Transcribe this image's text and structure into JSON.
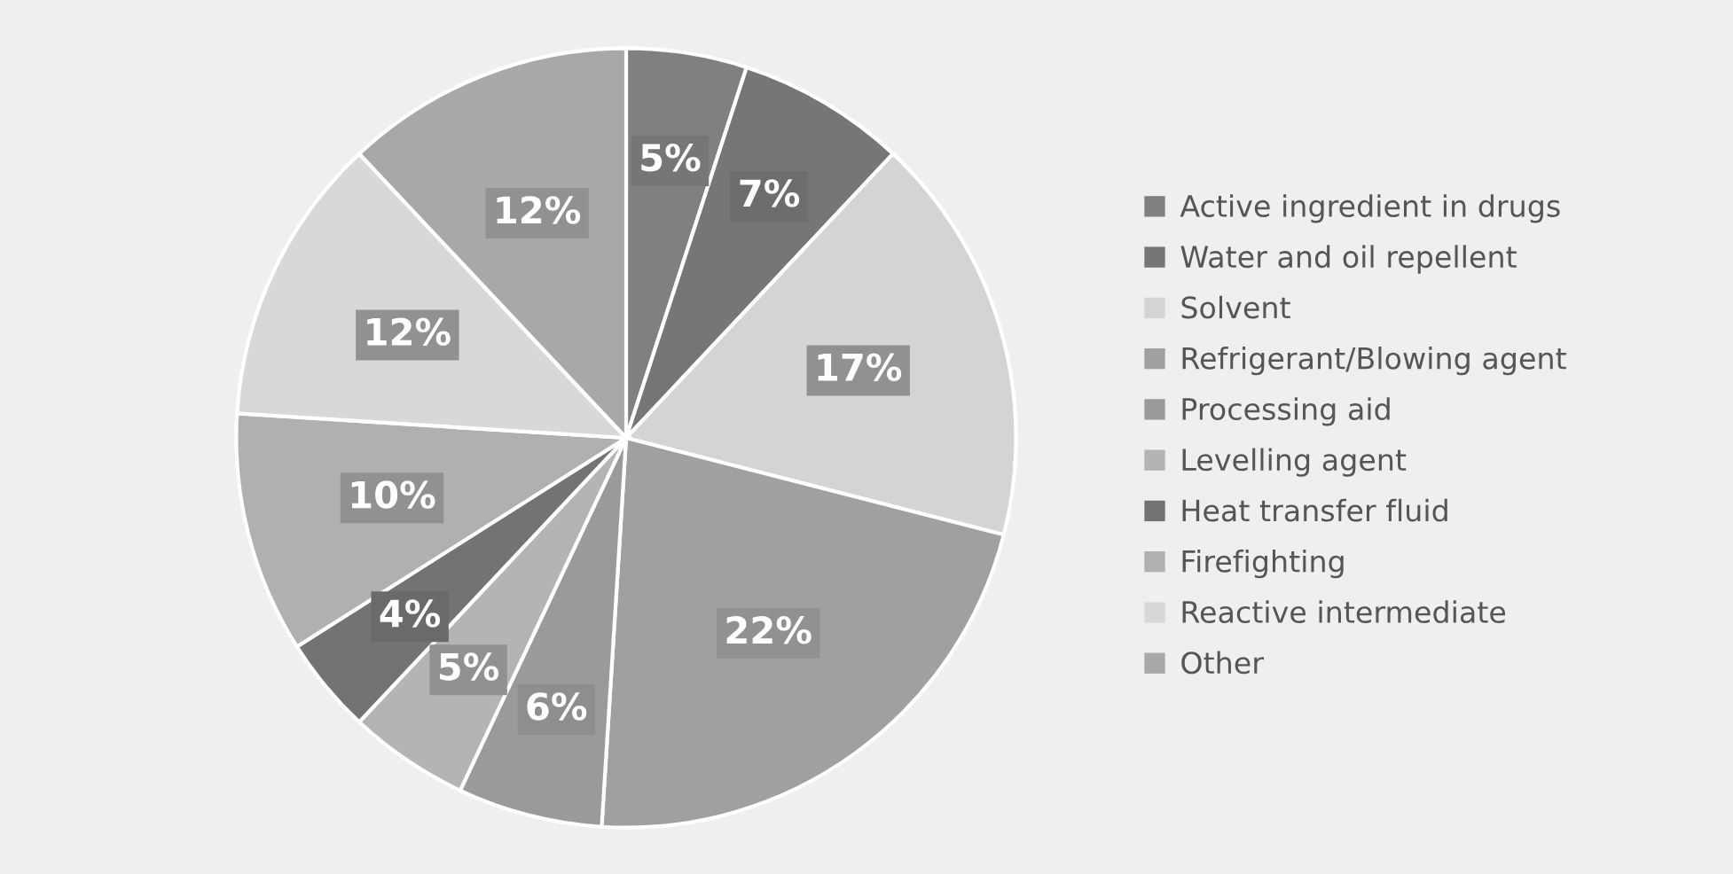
{
  "chart_data": {
    "type": "pie",
    "categories": [
      "Active ingredient in drugs",
      "Water and oil repellent",
      "Solvent",
      "Refrigerant/Blowing agent",
      "Processing aid",
      "Levelling agent",
      "Heat transfer fluid",
      "Firefighting",
      "Reactive intermediate",
      "Other"
    ],
    "values": [
      5,
      7,
      17,
      22,
      6,
      5,
      4,
      10,
      12,
      12
    ],
    "value_labels": [
      "5%",
      "7%",
      "17%",
      "22%",
      "6%",
      "5%",
      "4%",
      "10%",
      "12%",
      "12%"
    ],
    "colors": [
      "#808080",
      "#767676",
      "#d4d4d4",
      "#a0a0a0",
      "#9a9a9a",
      "#b4b4b4",
      "#737373",
      "#b0b0b0",
      "#d8d8d8",
      "#a8a8a8"
    ],
    "legend": "right"
  }
}
